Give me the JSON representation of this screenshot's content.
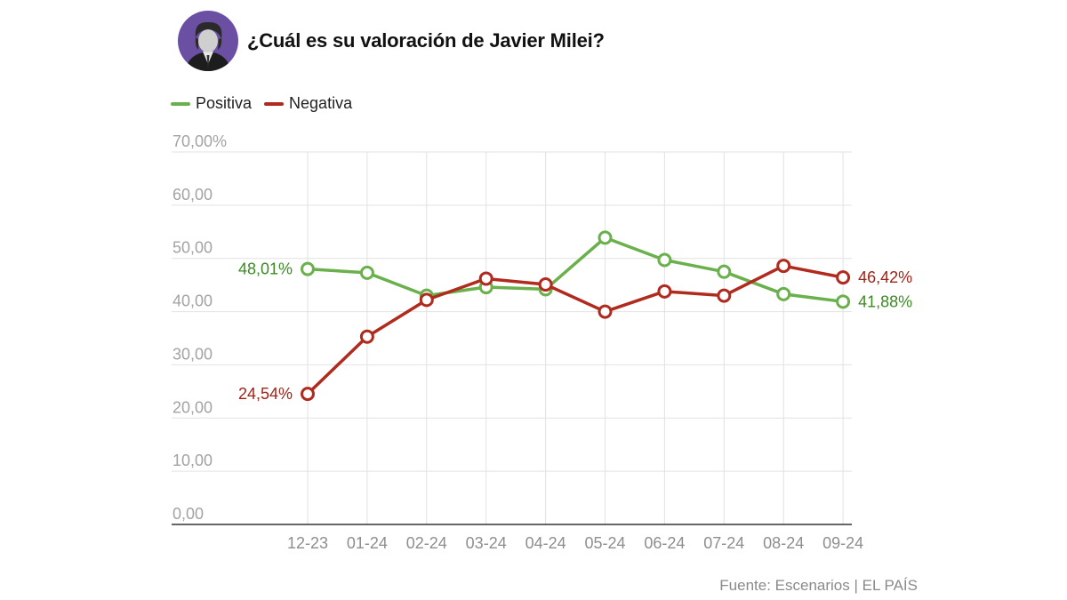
{
  "header": {
    "title": "¿Cuál es su valoración de Javier Milei?",
    "avatar_bg": "#6a4fa3"
  },
  "legend": [
    {
      "label": "Positiva",
      "color": "#6ab04c"
    },
    {
      "label": "Negativa",
      "color": "#b02a1e"
    }
  ],
  "chart_data": {
    "type": "line",
    "title": "¿Cuál es su valoración de Javier Milei?",
    "xlabel": "",
    "ylabel": "",
    "categories": [
      "12-23",
      "01-24",
      "02-24",
      "03-24",
      "04-24",
      "05-24",
      "06-24",
      "07-24",
      "08-24",
      "09-24"
    ],
    "ylim": [
      0,
      70
    ],
    "yticks": [
      "0,00",
      "10,00",
      "20,00",
      "30,00",
      "40,00",
      "50,00",
      "60,00",
      "70,00%"
    ],
    "grid": true,
    "legend_position": "top-left",
    "series": [
      {
        "name": "Positiva",
        "color": "#6ab04c",
        "label_color": "#3b8a24",
        "values": [
          48.01,
          47.3,
          43.0,
          44.6,
          44.2,
          53.9,
          49.7,
          47.5,
          43.3,
          41.88
        ],
        "start_label": "48,01%",
        "end_label": "41,88%"
      },
      {
        "name": "Negativa",
        "color": "#b02a1e",
        "label_color": "#a02318",
        "values": [
          24.54,
          35.3,
          42.2,
          46.2,
          45.1,
          40.0,
          43.8,
          43.0,
          48.6,
          46.42
        ],
        "start_label": "24,54%",
        "end_label": "46,42%"
      }
    ]
  },
  "footer": {
    "source": "Fuente: Escenarios | EL PAÍS"
  }
}
